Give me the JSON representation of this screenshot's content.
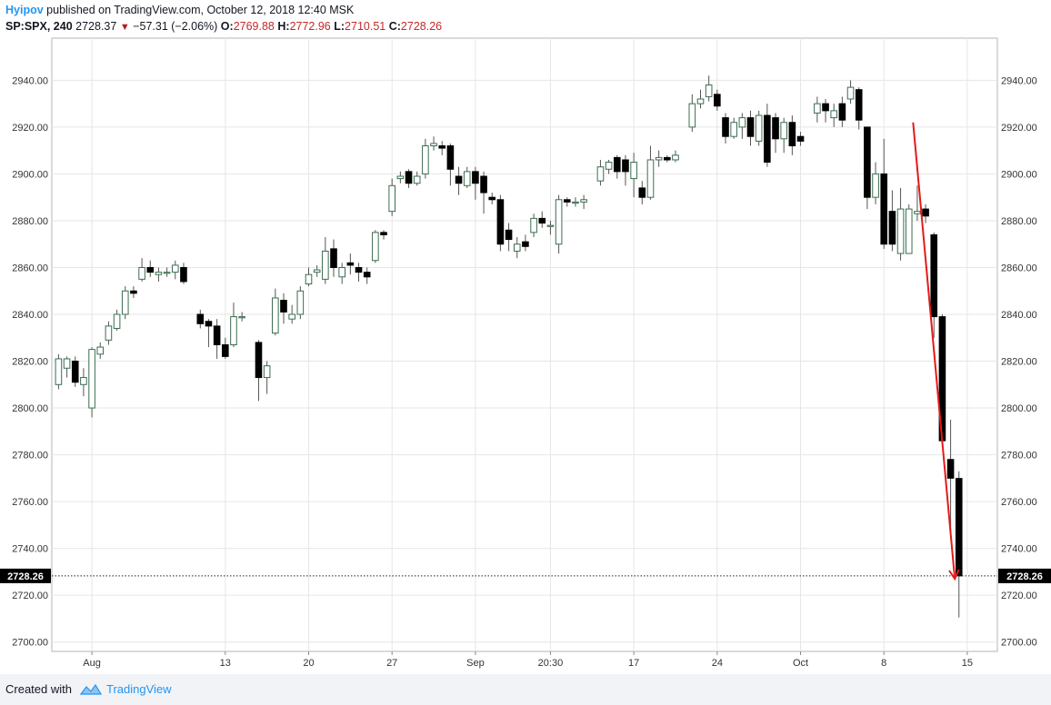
{
  "header": {
    "author": "Hyipov",
    "published_text": "published on TradingView.com, October 12, 2018 12:40 MSK",
    "symbol": "SP:SPX, 240",
    "last": "2728.37",
    "change": "−57.31 (−2.06%)",
    "o_label": "O:",
    "o_value": "2769.88",
    "h_label": "H:",
    "h_value": "2772.96",
    "l_label": "L:",
    "l_value": "2710.51",
    "c_label": "C:",
    "c_value": "2728.26"
  },
  "footer": {
    "created_with": "Created with",
    "brand": "TradingView"
  },
  "colors": {
    "up_fill": "#ffffff",
    "up_border": "#3b6e4f",
    "down_fill": "#000000",
    "wick": "#555555",
    "arrow": "#e61919",
    "grid": "#e6e6e6"
  },
  "chart_data": {
    "type": "candlestick",
    "symbol": "SP:SPX",
    "interval": "240",
    "ylim": [
      2696,
      2958
    ],
    "y_ticks": [
      "2940.00",
      "2920.00",
      "2900.00",
      "2880.00",
      "2860.00",
      "2840.00",
      "2820.00",
      "2800.00",
      "2780.00",
      "2760.00",
      "2740.00",
      "2720.00",
      "2700.00"
    ],
    "x_ticks": [
      {
        "i": 4,
        "label": "Aug"
      },
      {
        "i": 20,
        "label": "13"
      },
      {
        "i": 30,
        "label": "20"
      },
      {
        "i": 40,
        "label": "27"
      },
      {
        "i": 50,
        "label": "Sep"
      },
      {
        "i": 59,
        "label": "20:30"
      },
      {
        "i": 69,
        "label": "17"
      },
      {
        "i": 79,
        "label": "24"
      },
      {
        "i": 89,
        "label": "Oct"
      },
      {
        "i": 99,
        "label": "8"
      },
      {
        "i": 109,
        "label": "15"
      }
    ],
    "price_line": {
      "value": 2728.26,
      "label": "2728.26"
    },
    "candles": [
      [
        2810,
        2821,
        2808,
        2823
      ],
      [
        2817,
        2821,
        2813,
        2822
      ],
      [
        2820,
        2811,
        2809,
        2822
      ],
      [
        2810,
        2813,
        2805,
        2817
      ],
      [
        2800,
        2825,
        2796,
        2826
      ],
      [
        2823,
        2826,
        2821,
        2828
      ],
      [
        2829,
        2835,
        2827,
        2837
      ],
      [
        2834,
        2840,
        2833,
        2842
      ],
      [
        2840,
        2850,
        2838,
        2852
      ],
      [
        2850,
        2849,
        2847,
        2852
      ],
      [
        2855,
        2860,
        2854,
        2864
      ],
      [
        2860,
        2858,
        2856,
        2863
      ],
      [
        2857,
        2858,
        2854,
        2860
      ],
      [
        2858,
        2858,
        2856,
        2860
      ],
      [
        2858,
        2861,
        2855,
        2863
      ],
      [
        2860,
        2854,
        2853,
        2862
      ],
      null,
      [
        2840,
        2836,
        2834,
        2842
      ],
      [
        2837,
        2835,
        2826,
        2838
      ],
      [
        2835,
        2827,
        2821,
        2838
      ],
      [
        2827,
        2822,
        2821,
        2830
      ],
      [
        2827,
        2839,
        2826,
        2845
      ],
      [
        2839,
        2839,
        2837,
        2841
      ],
      null,
      [
        2828,
        2813,
        2803,
        2829
      ],
      [
        2813,
        2818,
        2806,
        2820
      ],
      [
        2832,
        2847,
        2831,
        2851
      ],
      [
        2846,
        2841,
        2836,
        2849
      ],
      [
        2838,
        2840,
        2836,
        2844
      ],
      [
        2840,
        2850,
        2838,
        2852
      ],
      [
        2853,
        2857,
        2852,
        2860
      ],
      [
        2858,
        2859,
        2856,
        2861
      ],
      [
        2855,
        2867,
        2853,
        2873
      ],
      [
        2868,
        2860,
        2856,
        2872
      ],
      [
        2856,
        2860,
        2853,
        2862
      ],
      [
        2862,
        2861,
        2857,
        2866
      ],
      [
        2860,
        2858,
        2854,
        2862
      ],
      [
        2858,
        2856,
        2853,
        2860
      ],
      [
        2863,
        2875,
        2862,
        2876
      ],
      [
        2875,
        2874,
        2872,
        2876
      ],
      [
        2884,
        2895,
        2882,
        2898
      ],
      [
        2898,
        2899,
        2896,
        2901
      ],
      [
        2901,
        2896,
        2894,
        2902
      ],
      [
        2896,
        2899,
        2895,
        2901
      ],
      [
        2900,
        2912,
        2898,
        2915
      ],
      [
        2912,
        2913,
        2910,
        2916
      ],
      [
        2912,
        2911,
        2908,
        2914
      ],
      [
        2912,
        2902,
        2895,
        2913
      ],
      [
        2899,
        2896,
        2891,
        2903
      ],
      [
        2895,
        2901,
        2894,
        2903
      ],
      [
        2901,
        2896,
        2889,
        2903
      ],
      [
        2899,
        2892,
        2883,
        2901
      ],
      [
        2890,
        2889,
        2887,
        2892
      ],
      [
        2889,
        2870,
        2867,
        2891
      ],
      [
        2876,
        2872,
        2867,
        2879
      ],
      [
        2867,
        2870,
        2864,
        2873
      ],
      [
        2871,
        2869,
        2867,
        2874
      ],
      [
        2875,
        2881,
        2873,
        2883
      ],
      [
        2881,
        2879,
        2877,
        2884
      ],
      [
        2878,
        2878,
        2874,
        2880
      ],
      [
        2870,
        2889,
        2866,
        2891
      ],
      [
        2889,
        2888,
        2886,
        2890
      ],
      [
        2888,
        2888,
        2886,
        2890
      ],
      [
        2888,
        2889,
        2885,
        2891
      ],
      null,
      [
        2897,
        2903,
        2895,
        2906
      ],
      [
        2902,
        2905,
        2900,
        2906
      ],
      [
        2907,
        2901,
        2898,
        2908
      ],
      [
        2906,
        2901,
        2895,
        2908
      ],
      [
        2898,
        2905,
        2890,
        2909
      ],
      [
        2894,
        2890,
        2887,
        2897
      ],
      [
        2890,
        2906,
        2889,
        2912
      ],
      [
        2906,
        2907,
        2903,
        2910
      ],
      [
        2907,
        2906,
        2905,
        2908
      ],
      [
        2906,
        2908,
        2905,
        2910
      ],
      null,
      [
        2920,
        2930,
        2918,
        2934
      ],
      [
        2930,
        2932,
        2928,
        2936
      ],
      [
        2933,
        2938,
        2931,
        2942
      ],
      [
        2934,
        2929,
        2927,
        2936
      ],
      [
        2924,
        2916,
        2913,
        2926
      ],
      [
        2916,
        2922,
        2915,
        2924
      ],
      [
        2920,
        2924,
        2915,
        2926
      ],
      [
        2924,
        2916,
        2912,
        2927
      ],
      [
        2914,
        2925,
        2912,
        2927
      ],
      [
        2925,
        2905,
        2903,
        2930
      ],
      [
        2924,
        2915,
        2909,
        2926
      ],
      [
        2915,
        2922,
        2909,
        2924
      ],
      [
        2922,
        2912,
        2908,
        2925
      ],
      [
        2916,
        2914,
        2912,
        2918
      ],
      null,
      [
        2926,
        2930,
        2922,
        2933
      ],
      [
        2930,
        2927,
        2922,
        2932
      ],
      [
        2924,
        2927,
        2920,
        2930
      ],
      [
        2930,
        2923,
        2920,
        2933
      ],
      [
        2932,
        2937,
        2930,
        2940
      ],
      [
        2936,
        2923,
        2919,
        2937
      ],
      [
        2920,
        2890,
        2885,
        2920
      ],
      [
        2890,
        2900,
        2887,
        2905
      ],
      [
        2900,
        2870,
        2868,
        2915
      ],
      [
        2884,
        2870,
        2867,
        2893
      ],
      [
        2866,
        2885,
        2863,
        2894
      ],
      [
        2866,
        2885,
        2866,
        2887
      ],
      [
        2883,
        2884,
        2880,
        2895
      ],
      [
        2885,
        2882,
        2879,
        2887
      ],
      [
        2874,
        2839,
        2830,
        2875
      ],
      [
        2839,
        2786,
        2784,
        2840
      ],
      [
        2778,
        2770,
        2746,
        2795
      ],
      [
        2769.88,
        2728.26,
        2710.51,
        2772.96
      ]
    ],
    "annotations": [
      {
        "type": "arrow",
        "from": {
          "i": 102.5,
          "price": 2922
        },
        "to": {
          "i": 107.5,
          "price": 2727
        }
      }
    ]
  }
}
